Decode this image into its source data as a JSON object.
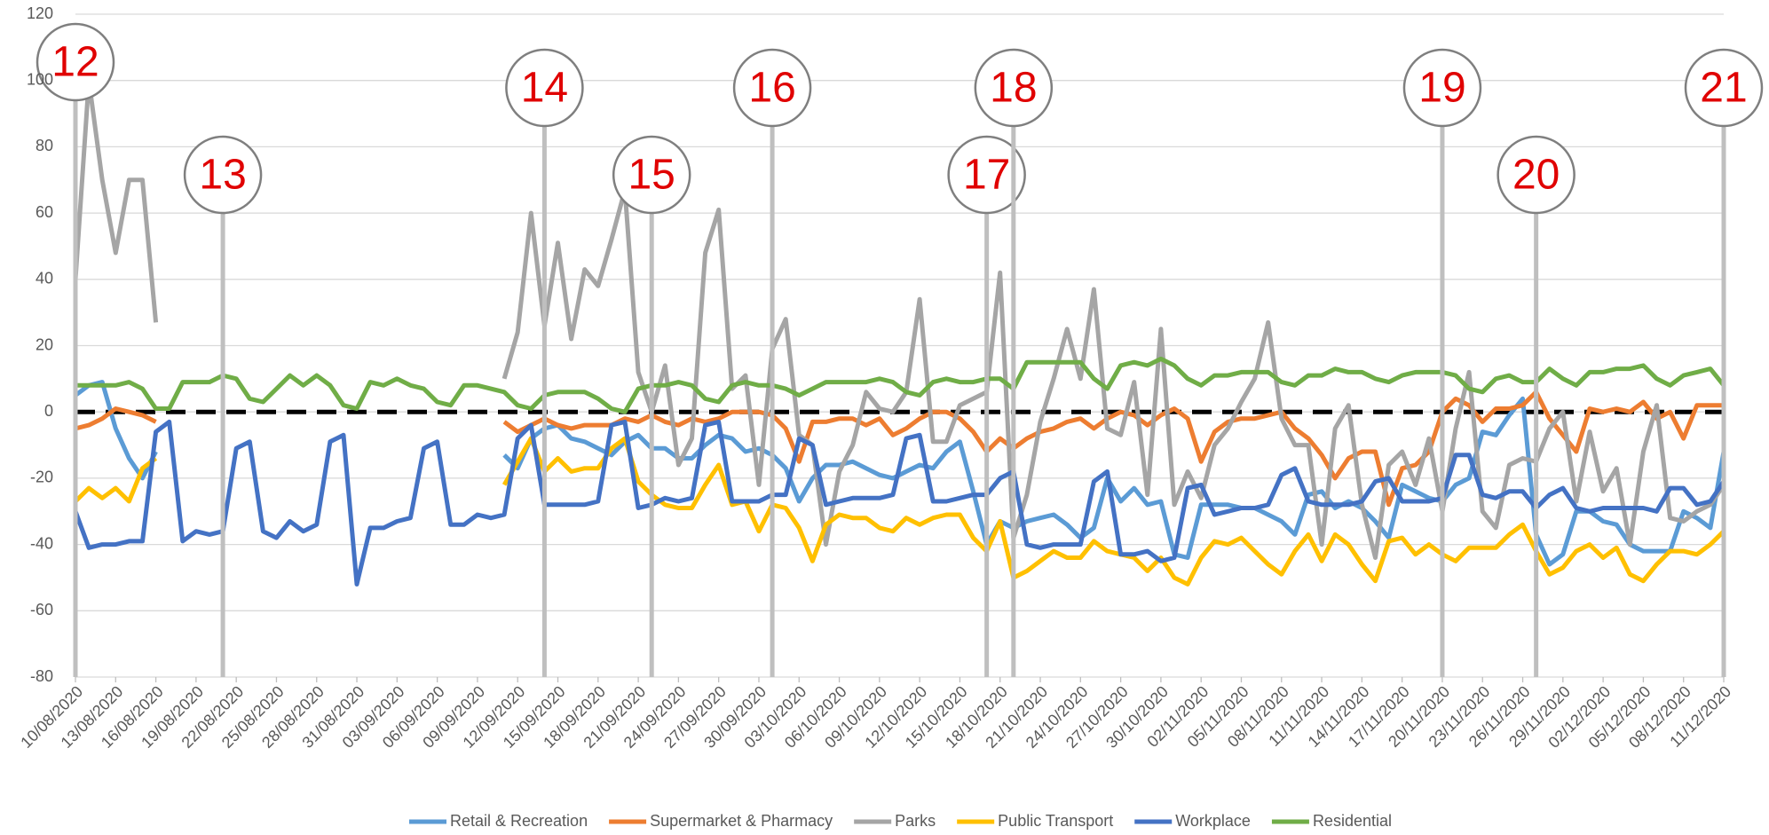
{
  "chart_data": {
    "type": "line",
    "x": [
      "10/08/2020",
      "11/08/2020",
      "12/08/2020",
      "13/08/2020",
      "14/08/2020",
      "15/08/2020",
      "16/08/2020",
      "17/08/2020",
      "18/08/2020",
      "19/08/2020",
      "20/08/2020",
      "21/08/2020",
      "22/08/2020",
      "23/08/2020",
      "24/08/2020",
      "25/08/2020",
      "26/08/2020",
      "27/08/2020",
      "28/08/2020",
      "29/08/2020",
      "30/08/2020",
      "31/08/2020",
      "01/09/2020",
      "02/09/2020",
      "03/09/2020",
      "04/09/2020",
      "05/09/2020",
      "06/09/2020",
      "07/09/2020",
      "08/09/2020",
      "09/09/2020",
      "10/09/2020",
      "11/09/2020",
      "12/09/2020",
      "13/09/2020",
      "14/09/2020",
      "15/09/2020",
      "16/09/2020",
      "17/09/2020",
      "18/09/2020",
      "19/09/2020",
      "20/09/2020",
      "21/09/2020",
      "22/09/2020",
      "23/09/2020",
      "24/09/2020",
      "25/09/2020",
      "26/09/2020",
      "27/09/2020",
      "28/09/2020",
      "29/09/2020",
      "30/09/2020",
      "01/10/2020",
      "02/10/2020",
      "03/10/2020",
      "04/10/2020",
      "05/10/2020",
      "06/10/2020",
      "07/10/2020",
      "08/10/2020",
      "09/10/2020",
      "10/10/2020",
      "11/10/2020",
      "12/10/2020",
      "13/10/2020",
      "14/10/2020",
      "15/10/2020",
      "16/10/2020",
      "17/10/2020",
      "18/10/2020",
      "19/10/2020",
      "20/10/2020",
      "21/10/2020",
      "22/10/2020",
      "23/10/2020",
      "24/10/2020",
      "25/10/2020",
      "26/10/2020",
      "27/10/2020",
      "28/10/2020",
      "29/10/2020",
      "30/10/2020",
      "31/10/2020",
      "01/11/2020",
      "02/11/2020",
      "03/11/2020",
      "04/11/2020",
      "05/11/2020",
      "06/11/2020",
      "07/11/2020",
      "08/11/2020",
      "09/11/2020",
      "10/11/2020",
      "11/11/2020",
      "12/11/2020",
      "13/11/2020",
      "14/11/2020",
      "15/11/2020",
      "16/11/2020",
      "17/11/2020",
      "18/11/2020",
      "19/11/2020",
      "20/11/2020",
      "21/11/2020",
      "22/11/2020",
      "23/11/2020",
      "24/11/2020",
      "25/11/2020",
      "26/11/2020",
      "27/11/2020",
      "28/11/2020",
      "29/11/2020",
      "30/11/2020",
      "01/12/2020",
      "02/12/2020",
      "03/12/2020",
      "04/12/2020",
      "05/12/2020",
      "06/12/2020",
      "07/12/2020",
      "08/12/2020",
      "09/12/2020",
      "10/12/2020",
      "11/12/2020"
    ],
    "xticks": [
      "10/08/2020",
      "13/08/2020",
      "16/08/2020",
      "19/08/2020",
      "22/08/2020",
      "25/08/2020",
      "28/08/2020",
      "31/08/2020",
      "03/09/2020",
      "06/09/2020",
      "09/09/2020",
      "12/09/2020",
      "15/09/2020",
      "18/09/2020",
      "21/09/2020",
      "24/09/2020",
      "27/09/2020",
      "30/09/2020",
      "03/10/2020",
      "06/10/2020",
      "09/10/2020",
      "12/10/2020",
      "15/10/2020",
      "18/10/2020",
      "21/10/2020",
      "24/10/2020",
      "27/10/2020",
      "30/10/2020",
      "02/11/2020",
      "05/11/2020",
      "08/11/2020",
      "11/11/2020",
      "14/11/2020",
      "17/11/2020",
      "20/11/2020",
      "23/11/2020",
      "26/11/2020",
      "29/11/2020",
      "02/12/2020",
      "05/12/2020",
      "08/12/2020",
      "11/12/2020"
    ],
    "ylim": [
      -80,
      120
    ],
    "yticks": [
      -80,
      -60,
      -40,
      -20,
      0,
      20,
      40,
      60,
      80,
      100,
      120
    ],
    "grid": true,
    "zero_line": {
      "value": 0,
      "style": "dashed",
      "color": "#000000"
    },
    "legend": "bottom",
    "series": [
      {
        "name": "Retail & Recreation",
        "color": "#5b9bd5",
        "values": [
          5,
          8,
          9,
          -5,
          -14,
          -20,
          -12,
          null,
          null,
          null,
          null,
          null,
          null,
          null,
          null,
          null,
          null,
          null,
          null,
          null,
          null,
          null,
          null,
          null,
          null,
          null,
          null,
          null,
          null,
          null,
          null,
          null,
          -13,
          -17,
          -8,
          -5,
          -4,
          -8,
          -9,
          -11,
          -13,
          -9,
          -7,
          -11,
          -11,
          -14,
          -14,
          -10,
          -7,
          -8,
          -12,
          -11,
          -13,
          -17,
          -27,
          -20,
          -16,
          -16,
          -15,
          -17,
          -19,
          -20,
          -18,
          -16,
          -17,
          -12,
          -9,
          -24,
          -40,
          -33,
          -35,
          -33,
          -32,
          -31,
          -34,
          -38,
          -35,
          -20,
          -27,
          -23,
          -28,
          -27,
          -43,
          -44,
          -28,
          -28,
          -28,
          -29,
          -29,
          -31,
          -33,
          -37,
          -25,
          -24,
          -29,
          -27,
          -29,
          -33,
          -38,
          -22,
          -24,
          -26,
          -27,
          -22,
          -20,
          -6,
          -7,
          -1,
          4,
          -37,
          -46,
          -43,
          -30,
          -30,
          -33,
          -34,
          -40,
          -42,
          -42,
          -42,
          -30,
          -32,
          -35,
          -12
        ]
      },
      {
        "name": "Supermarket & Pharmacy",
        "color": "#ed7d31",
        "values": [
          -5,
          -4,
          -2,
          1,
          0,
          -1,
          -3,
          null,
          null,
          null,
          null,
          null,
          null,
          null,
          null,
          null,
          null,
          null,
          null,
          null,
          null,
          null,
          null,
          null,
          null,
          null,
          null,
          null,
          null,
          null,
          null,
          null,
          -3,
          -6,
          -4,
          -2,
          -4,
          -5,
          -4,
          -4,
          -4,
          -2,
          -3,
          -1,
          -3,
          -4,
          -2,
          -3,
          -2,
          0,
          0,
          0,
          -1,
          -5,
          -15,
          -3,
          -3,
          -2,
          -2,
          -4,
          -2,
          -7,
          -5,
          -2,
          0,
          0,
          -2,
          -6,
          -12,
          -8,
          -11,
          -8,
          -6,
          -5,
          -3,
          -2,
          -5,
          -2,
          0,
          -1,
          -4,
          -1,
          1,
          -2,
          -15,
          -6,
          -3,
          -2,
          -2,
          -1,
          0,
          -5,
          -8,
          -13,
          -20,
          -14,
          -12,
          -12,
          -28,
          -17,
          -16,
          -12,
          0,
          4,
          2,
          -3,
          1,
          1,
          2,
          6,
          -2,
          -7,
          -12,
          1,
          0,
          1,
          0,
          3,
          -2,
          0,
          -8,
          2,
          2,
          2
        ]
      },
      {
        "name": "Parks",
        "color": "#a5a5a5",
        "values": [
          40,
          100,
          70,
          48,
          70,
          70,
          27,
          null,
          null,
          null,
          null,
          null,
          null,
          null,
          null,
          null,
          null,
          null,
          null,
          null,
          null,
          null,
          null,
          null,
          null,
          null,
          null,
          null,
          null,
          null,
          null,
          null,
          10,
          24,
          60,
          26,
          51,
          22,
          43,
          38,
          52,
          67,
          12,
          0,
          14,
          -16,
          -8,
          48,
          61,
          7,
          11,
          -22,
          19,
          28,
          -7,
          -10,
          -40,
          -18,
          -10,
          6,
          1,
          0,
          6,
          34,
          -9,
          -9,
          2,
          4,
          6,
          42,
          -38,
          -25,
          -3,
          10,
          25,
          10,
          37,
          -5,
          -7,
          9,
          -25,
          25,
          -28,
          -18,
          -26,
          -10,
          -5,
          3,
          10,
          27,
          -2,
          -10,
          -10,
          -40,
          -5,
          2,
          -28,
          -44,
          -16,
          -12,
          -22,
          -8,
          -30,
          -5,
          12,
          -30,
          -35,
          -16,
          -14,
          -15,
          -5,
          0,
          -27,
          -6,
          -24,
          -17,
          -40,
          -12,
          2,
          -32,
          -33,
          -30,
          -28,
          -22
        ]
      },
      {
        "name": "Public Transport",
        "color": "#ffc000",
        "values": [
          -27,
          -23,
          -26,
          -23,
          -27,
          -17,
          -14,
          null,
          null,
          null,
          null,
          null,
          null,
          null,
          null,
          null,
          null,
          null,
          null,
          null,
          null,
          null,
          null,
          null,
          null,
          null,
          null,
          null,
          null,
          null,
          null,
          null,
          -22,
          -15,
          -8,
          -18,
          -14,
          -18,
          -17,
          -17,
          -11,
          -8,
          -21,
          -25,
          -28,
          -29,
          -29,
          -22,
          -16,
          -28,
          -27,
          -36,
          -28,
          -29,
          -35,
          -45,
          -34,
          -31,
          -32,
          -32,
          -35,
          -36,
          -32,
          -34,
          -32,
          -31,
          -31,
          -38,
          -42,
          -33,
          -50,
          -48,
          -45,
          -42,
          -44,
          -44,
          -39,
          -42,
          -43,
          -44,
          -48,
          -44,
          -50,
          -52,
          -44,
          -39,
          -40,
          -38,
          -42,
          -46,
          -49,
          -42,
          -37,
          -45,
          -37,
          -40,
          -46,
          -51,
          -39,
          -38,
          -43,
          -40,
          -43,
          -45,
          -41,
          -41,
          -41,
          -37,
          -34,
          -42,
          -49,
          -47,
          -42,
          -40,
          -44,
          -41,
          -49,
          -51,
          -46,
          -42,
          -42,
          -43,
          -40,
          -36
        ]
      },
      {
        "name": "Workplace",
        "color": "#4472c4",
        "values": [
          -30,
          -41,
          -40,
          -40,
          -39,
          -39,
          -6,
          -3,
          -39,
          -36,
          -37,
          -36,
          -11,
          -9,
          -36,
          -38,
          -33,
          -36,
          -34,
          -9,
          -7,
          -52,
          -35,
          -35,
          -33,
          -32,
          -11,
          -9,
          -34,
          -34,
          -31,
          -32,
          -31,
          -8,
          -4,
          -28,
          -28,
          -28,
          -28,
          -27,
          -4,
          -3,
          -29,
          -28,
          -26,
          -27,
          -26,
          -4,
          -3,
          -27,
          -27,
          -27,
          -25,
          -25,
          -8,
          -10,
          -28,
          -27,
          -26,
          -26,
          -26,
          -25,
          -8,
          -7,
          -27,
          -27,
          -26,
          -25,
          -25,
          -20,
          -18,
          -40,
          -41,
          -40,
          -40,
          -40,
          -21,
          -18,
          -43,
          -43,
          -42,
          -45,
          -44,
          -23,
          -22,
          -31,
          -30,
          -29,
          -29,
          -28,
          -19,
          -17,
          -27,
          -28,
          -28,
          -28,
          -27,
          -21,
          -20,
          -27,
          -27,
          -27,
          -26,
          -13,
          -13,
          -25,
          -26,
          -24,
          -24,
          -29,
          -25,
          -23,
          -29,
          -30,
          -29,
          -29,
          -29,
          -29,
          -30,
          -23,
          -23,
          -28,
          -27,
          -21
        ]
      },
      {
        "name": "Residential",
        "color": "#70ad47",
        "values": [
          8,
          8,
          8,
          8,
          9,
          7,
          1,
          1,
          9,
          9,
          9,
          11,
          10,
          4,
          3,
          7,
          11,
          8,
          11,
          8,
          2,
          1,
          9,
          8,
          10,
          8,
          7,
          3,
          2,
          8,
          8,
          7,
          6,
          2,
          1,
          5,
          6,
          6,
          6,
          4,
          1,
          0,
          7,
          8,
          8,
          9,
          8,
          4,
          3,
          8,
          9,
          8,
          8,
          7,
          5,
          7,
          9,
          9,
          9,
          9,
          10,
          9,
          6,
          5,
          9,
          10,
          9,
          9,
          10,
          10,
          7,
          15,
          15,
          15,
          15,
          15,
          10,
          7,
          14,
          15,
          14,
          16,
          14,
          10,
          8,
          11,
          11,
          12,
          12,
          12,
          9,
          8,
          11,
          11,
          13,
          12,
          12,
          10,
          9,
          11,
          12,
          12,
          12,
          11,
          7,
          6,
          10,
          11,
          9,
          9,
          13,
          10,
          8,
          12,
          12,
          13,
          13,
          14,
          10,
          8,
          11,
          12,
          13,
          8
        ]
      }
    ],
    "annotations": [
      {
        "label": "12",
        "x": "10/08/2020"
      },
      {
        "label": "13",
        "x": "21/08/2020"
      },
      {
        "label": "14",
        "x": "14/09/2020"
      },
      {
        "label": "15",
        "x": "22/09/2020"
      },
      {
        "label": "16",
        "x": "01/10/2020"
      },
      {
        "label": "17",
        "x": "17/10/2020"
      },
      {
        "label": "18",
        "x": "19/10/2020"
      },
      {
        "label": "19",
        "x": "20/11/2020"
      },
      {
        "label": "20",
        "x": "27/11/2020"
      },
      {
        "label": "21",
        "x": "11/12/2020"
      }
    ]
  }
}
